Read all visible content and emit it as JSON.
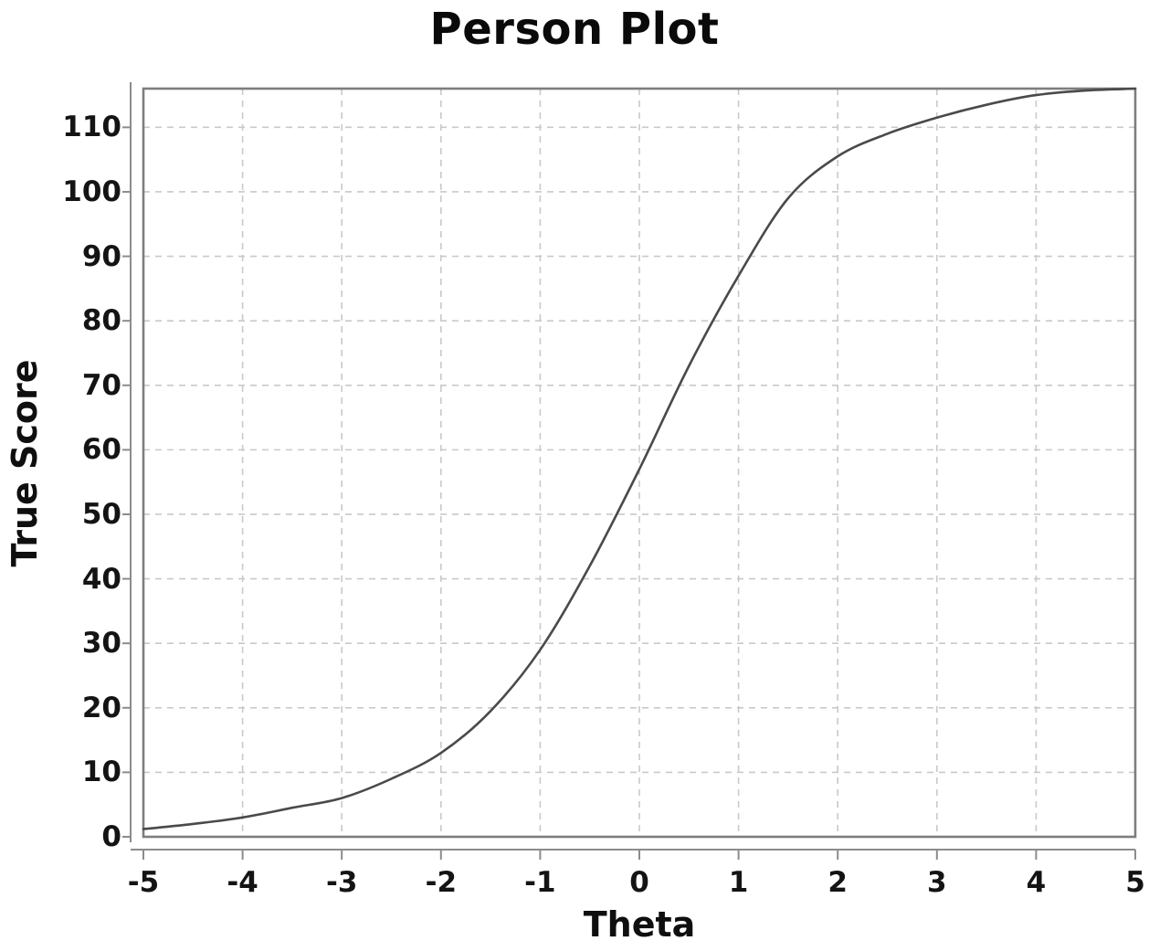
{
  "chart_data": {
    "type": "line",
    "title": "Person Plot",
    "xlabel": "Theta",
    "ylabel": "True Score",
    "xlim": [
      -5,
      5
    ],
    "ylim": [
      0,
      116
    ],
    "x_ticks": [
      -5,
      -4,
      -3,
      -2,
      -1,
      0,
      1,
      2,
      3,
      4,
      5
    ],
    "y_ticks": [
      0,
      10,
      20,
      30,
      40,
      50,
      60,
      70,
      80,
      90,
      100,
      110
    ],
    "grid": "dashed",
    "legend": "none",
    "x": [
      -5,
      -4.5,
      -4,
      -3.5,
      -3,
      -2.5,
      -2,
      -1.5,
      -1,
      -0.5,
      0,
      0.5,
      1,
      1.5,
      2,
      2.5,
      3,
      3.5,
      4,
      4.5,
      5
    ],
    "y": [
      1.2,
      2,
      3,
      4.5,
      6,
      9,
      13,
      19.5,
      29,
      42,
      57,
      73,
      87,
      99,
      105.5,
      109,
      111.5,
      113.5,
      115,
      115.7,
      116
    ],
    "colors": {
      "line": "#4a4a4a",
      "grid": "#c9c9c9",
      "frame": "#7d7d7d",
      "axis": "#8c8c8c",
      "text": "#0f0f0f"
    }
  }
}
